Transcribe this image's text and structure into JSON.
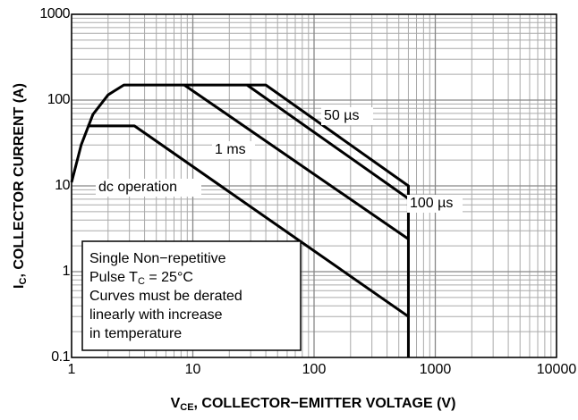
{
  "chart_data": {
    "type": "line",
    "xlabel": {
      "main": "V",
      "sub": "CE",
      "rest": ", COLLECTOR−EMITTER VOLTAGE (V)"
    },
    "ylabel": {
      "main": "I",
      "sub": "C",
      "rest": ", COLLECTOR CURRENT (A)"
    },
    "xscale": "log",
    "yscale": "log",
    "grid": true,
    "xlim": [
      1,
      10000
    ],
    "ylim": [
      0.1,
      1000
    ],
    "xticks": [
      1,
      10,
      100,
      1000,
      10000
    ],
    "yticks": [
      0.1,
      1,
      10,
      100,
      1000
    ],
    "color": "#000000",
    "series": [
      {
        "name": "50 µs",
        "x": [
          1,
          1.2,
          1.5,
          2,
          2.7,
          40,
          600,
          600
        ],
        "values": [
          11,
          30,
          68,
          115,
          150,
          150,
          10,
          0.1
        ]
      },
      {
        "name": "100 µs",
        "x": [
          28,
          600
        ],
        "values": [
          150,
          7.1
        ]
      },
      {
        "name": "1 ms",
        "x": [
          8.5,
          600
        ],
        "values": [
          150,
          2.4
        ]
      },
      {
        "name": "dc operation",
        "x": [
          1.35,
          3.3,
          600
        ],
        "values": [
          50,
          50,
          0.3
        ]
      }
    ],
    "note": [
      {
        "text": "Single Non−repetitive"
      },
      {
        "text": "Pulse T",
        "sub": "C",
        "rest": " = 25°C"
      },
      {
        "text": "Curves must be derated"
      },
      {
        "text": "linearly with increase"
      },
      {
        "text": "in temperature"
      }
    ]
  }
}
